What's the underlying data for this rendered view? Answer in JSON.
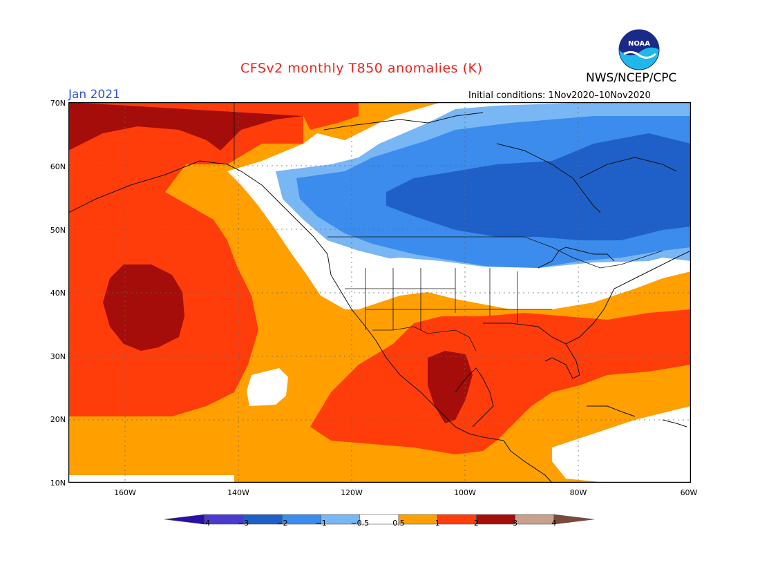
{
  "header": {
    "title": "CFSv2 monthly T850 anomalies (K)",
    "org": "NWS/NCEP/CPC",
    "month": "Jan 2021",
    "initial_conditions": "Initial conditions: 1Nov2020–10Nov2020",
    "logo_text": "NOAA"
  },
  "axes": {
    "lat_labels": [
      "70N",
      "60N",
      "50N",
      "40N",
      "30N",
      "20N",
      "10N"
    ],
    "lon_labels": [
      "160W",
      "140W",
      "120W",
      "100W",
      "80W",
      "60W"
    ]
  },
  "colorbar": {
    "labels": [
      "−4",
      "−3",
      "−2",
      "−1",
      "−0.5",
      "0.5",
      "1",
      "2",
      "3",
      "4"
    ],
    "colors": [
      "#2a0fa8",
      "#4b3ad0",
      "#1f60c8",
      "#3b8cec",
      "#78b6f4",
      "#ffffff",
      "#ffa000",
      "#ff3d0a",
      "#a50d0a",
      "#c8a08c",
      "#7a4a3a"
    ]
  },
  "map": {
    "extent": {
      "lon_min": -170,
      "lon_max": -60,
      "lat_min": 10,
      "lat_max": 70
    },
    "anomaly_regions": [
      {
        "level": "0.5 to 1",
        "color": "#ffa000"
      },
      {
        "level": "1 to 2",
        "color": "#ff3d0a"
      },
      {
        "level": "2 to 3",
        "color": "#a50d0a"
      },
      {
        "level": "-0.5 to 0.5",
        "color": "#ffffff"
      },
      {
        "level": "-1 to -0.5",
        "color": "#78b6f4"
      },
      {
        "level": "-2 to -1",
        "color": "#3b8cec"
      },
      {
        "level": "-3 to -2",
        "color": "#1f60c8"
      }
    ]
  }
}
